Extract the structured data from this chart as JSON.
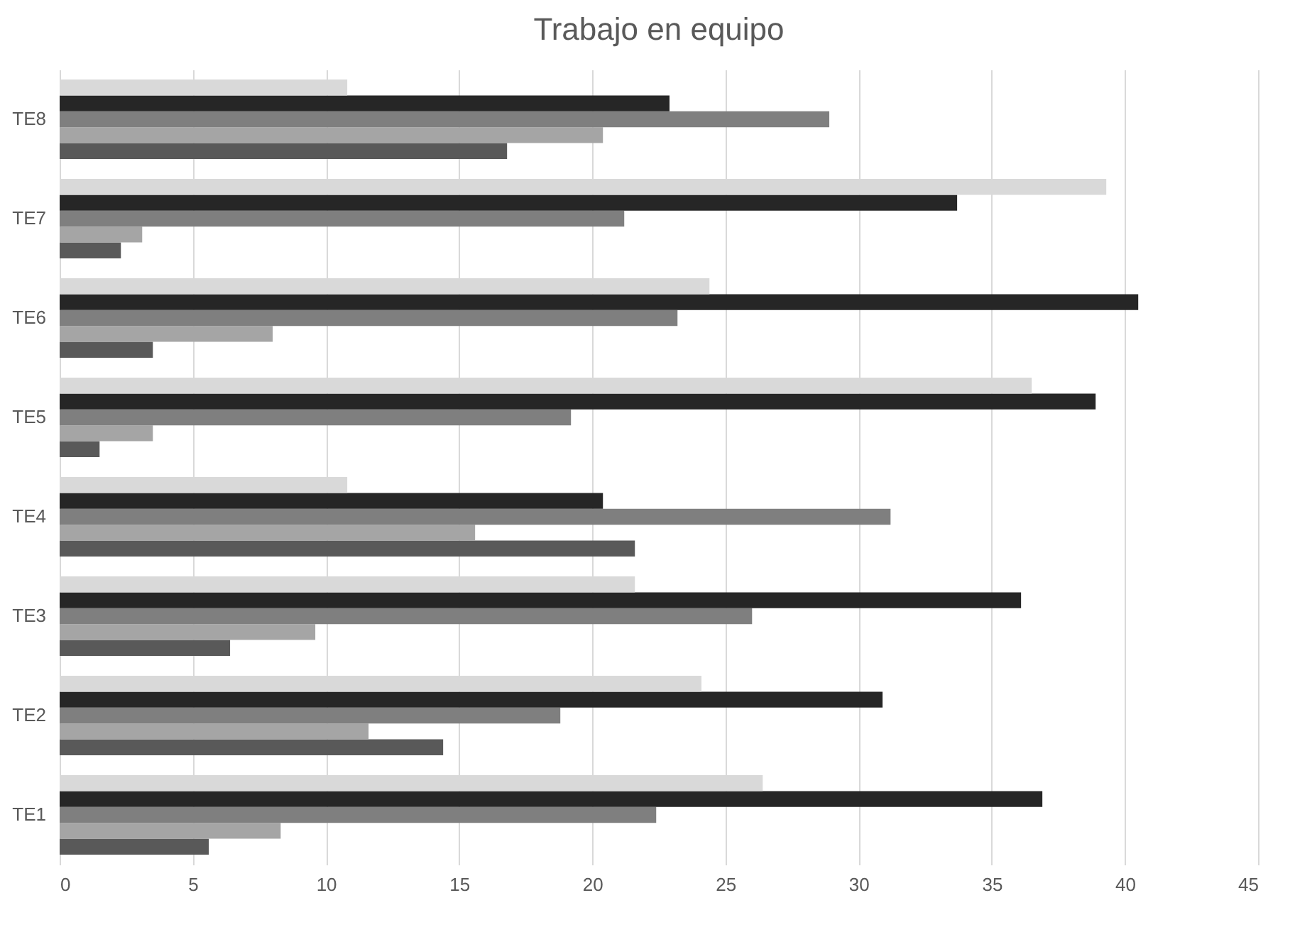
{
  "chart_data": {
    "type": "bar",
    "orientation": "horizontal",
    "title": "Trabajo en equipo",
    "categories": [
      "TE8",
      "TE7",
      "TE6",
      "TE5",
      "TE4",
      "TE3",
      "TE2",
      "TE1"
    ],
    "series": [
      {
        "color": "#595959",
        "values": [
          16.8,
          2.3,
          3.5,
          1.5,
          21.6,
          6.4,
          14.4,
          5.6
        ]
      },
      {
        "color": "#a5a5a5",
        "values": [
          20.4,
          3.1,
          8.0,
          3.5,
          15.6,
          9.6,
          11.6,
          8.3
        ]
      },
      {
        "color": "#7f7f7f",
        "values": [
          28.9,
          21.2,
          23.2,
          19.2,
          31.2,
          26.0,
          18.8,
          22.4
        ]
      },
      {
        "color": "#262626",
        "values": [
          22.9,
          33.7,
          40.5,
          38.9,
          20.4,
          36.1,
          30.9,
          36.9
        ]
      },
      {
        "color": "#d9d9d9",
        "values": [
          10.8,
          39.3,
          24.4,
          36.5,
          10.8,
          21.6,
          24.1,
          26.4
        ]
      }
    ],
    "xlim": [
      0,
      45
    ],
    "xticks": [
      0,
      5,
      10,
      15,
      20,
      25,
      30,
      35,
      40,
      45
    ],
    "grid": "x",
    "legend": false
  }
}
